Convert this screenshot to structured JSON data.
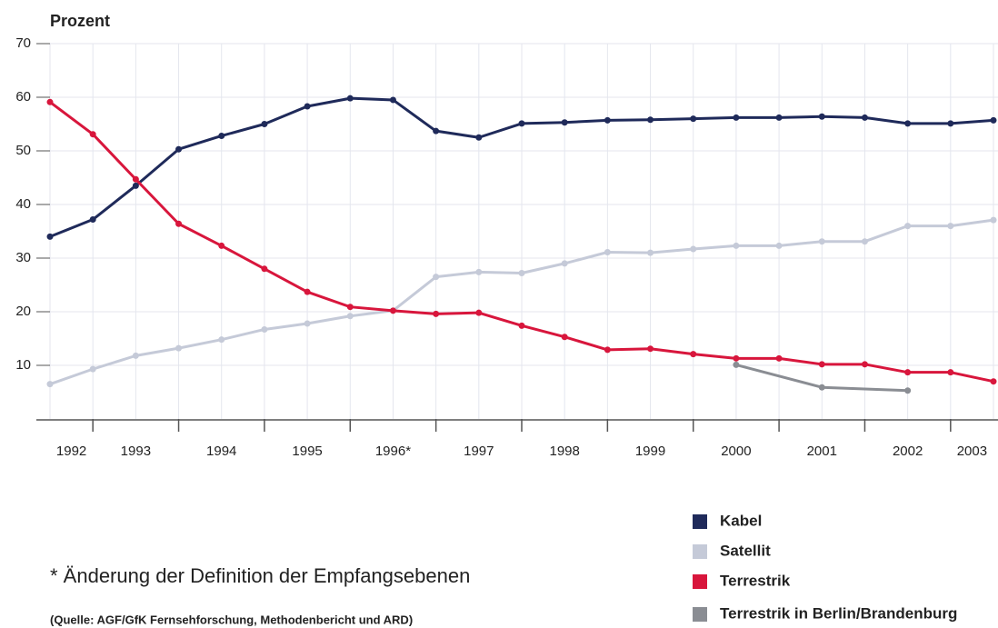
{
  "chart_data": {
    "type": "line",
    "y_label": "Prozent",
    "x": [
      1992,
      1992.5,
      1993,
      1993.5,
      1994,
      1994.5,
      1995,
      1995.5,
      1996,
      1996.5,
      1997,
      1997.5,
      1998,
      1998.5,
      1999,
      1999.5,
      2000,
      2000.5,
      2001,
      2001.5,
      2002,
      2002.5,
      2003
    ],
    "xlim": [
      1992,
      2003
    ],
    "xtick_labels": [
      "1992",
      "1993",
      "1994",
      "1995",
      "1996*",
      "1997",
      "1998",
      "1999",
      "2000",
      "2001",
      "2002",
      "2003"
    ],
    "ylim": [
      0,
      70
    ],
    "yticks": [
      10,
      20,
      30,
      40,
      50,
      60,
      70
    ],
    "grid": true,
    "series": [
      {
        "name": "Kabel",
        "color": "#1f2a5a",
        "values": [
          34,
          37.2,
          43.5,
          50.3,
          52.8,
          55,
          58.3,
          59.8,
          59.5,
          53.7,
          52.5,
          55.1,
          55.3,
          55.7,
          55.8,
          56,
          56.2,
          56.2,
          56.4,
          56.2,
          55.1,
          55.1,
          55.7
        ]
      },
      {
        "name": "Satellit",
        "color": "#c5cad8",
        "values": [
          6.5,
          9.3,
          11.8,
          13.2,
          14.8,
          16.7,
          17.8,
          19.2,
          20.2,
          26.5,
          27.4,
          27.2,
          29,
          31.1,
          31,
          31.7,
          32.3,
          32.3,
          33.1,
          33.1,
          36,
          36,
          37.1
        ]
      },
      {
        "name": "Terrestrik",
        "color": "#d8163c",
        "values": [
          59.1,
          53.1,
          44.7,
          36.4,
          32.3,
          28,
          23.7,
          20.9,
          20.2,
          19.6,
          19.8,
          17.4,
          15.3,
          12.9,
          13.1,
          12.1,
          11.3,
          11.3,
          10.2,
          10.2,
          8.7,
          8.7,
          7
        ]
      },
      {
        "name": "Terrestrik in Berlin/Brandenburg",
        "color": "#8a8d93",
        "x": [
          2000,
          2001,
          2002
        ],
        "values": [
          10.1,
          5.9,
          5.3
        ]
      }
    ],
    "footnote": "* Änderung der Definition der Empfangsebenen",
    "source": "(Quelle: AGF/GfK Fernsehforschung, Methodenbericht und ARD)"
  }
}
